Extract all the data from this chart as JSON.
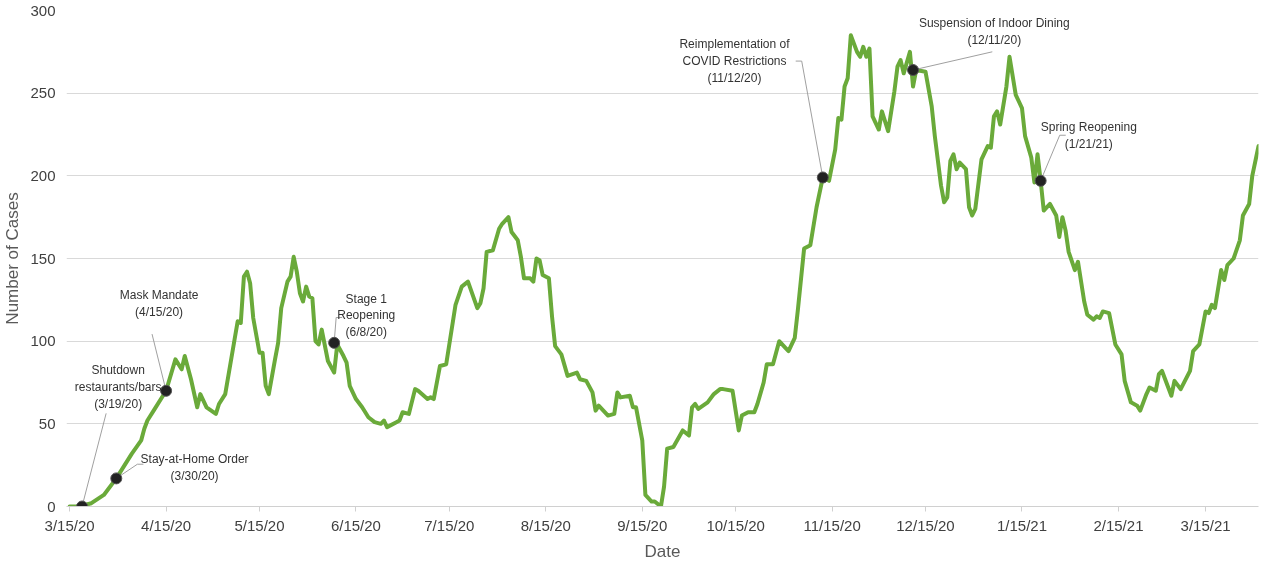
{
  "chart_data": {
    "type": "line",
    "xlabel": "Date",
    "ylabel": "Number of Cases",
    "x": [
      "2020-03-15",
      "2020-03-18",
      "2020-03-22",
      "2020-03-26",
      "2020-03-30",
      "2020-04-04",
      "2020-04-07",
      "2020-04-08",
      "2020-04-09",
      "2020-04-11",
      "2020-04-15",
      "2020-04-18",
      "2020-04-20",
      "2020-04-21",
      "2020-04-23",
      "2020-04-25",
      "2020-04-26",
      "2020-04-28",
      "2020-05-01",
      "2020-05-02",
      "2020-05-04",
      "2020-05-07",
      "2020-05-08",
      "2020-05-09",
      "2020-05-10",
      "2020-05-11",
      "2020-05-12",
      "2020-05-13",
      "2020-05-15",
      "2020-05-16",
      "2020-05-17",
      "2020-05-18",
      "2020-05-20",
      "2020-05-21",
      "2020-05-22",
      "2020-05-24",
      "2020-05-25",
      "2020-05-26",
      "2020-05-27",
      "2020-05-28",
      "2020-05-29",
      "2020-05-30",
      "2020-05-31",
      "2020-06-01",
      "2020-06-02",
      "2020-06-03",
      "2020-06-04",
      "2020-06-06",
      "2020-06-08",
      "2020-06-09",
      "2020-06-11",
      "2020-06-12",
      "2020-06-13",
      "2020-06-15",
      "2020-06-17",
      "2020-06-19",
      "2020-06-21",
      "2020-06-23",
      "2020-06-24",
      "2020-06-25",
      "2020-06-28",
      "2020-06-29",
      "2020-06-30",
      "2020-07-02",
      "2020-07-04",
      "2020-07-05",
      "2020-07-08",
      "2020-07-09",
      "2020-07-10",
      "2020-07-12",
      "2020-07-14",
      "2020-07-17",
      "2020-07-19",
      "2020-07-21",
      "2020-07-24",
      "2020-07-25",
      "2020-07-26",
      "2020-07-27",
      "2020-07-29",
      "2020-07-31",
      "2020-08-01",
      "2020-08-03",
      "2020-08-04",
      "2020-08-06",
      "2020-08-07",
      "2020-08-08",
      "2020-08-10",
      "2020-08-11",
      "2020-08-12",
      "2020-08-13",
      "2020-08-14",
      "2020-08-16",
      "2020-08-17",
      "2020-08-18",
      "2020-08-20",
      "2020-08-22",
      "2020-08-25",
      "2020-08-26",
      "2020-08-28",
      "2020-08-30",
      "2020-08-31",
      "2020-09-01",
      "2020-09-04",
      "2020-09-06",
      "2020-09-07",
      "2020-09-08",
      "2020-09-11",
      "2020-09-12",
      "2020-09-13",
      "2020-09-15",
      "2020-09-16",
      "2020-09-18",
      "2020-09-19",
      "2020-09-21",
      "2020-09-22",
      "2020-09-23",
      "2020-09-25",
      "2020-09-28",
      "2020-09-30",
      "2020-10-01",
      "2020-10-02",
      "2020-10-03",
      "2020-10-06",
      "2020-10-08",
      "2020-10-10",
      "2020-10-11",
      "2020-10-14",
      "2020-10-15",
      "2020-10-16",
      "2020-10-17",
      "2020-10-19",
      "2020-10-21",
      "2020-10-22",
      "2020-10-24",
      "2020-10-25",
      "2020-10-27",
      "2020-10-28",
      "2020-10-29",
      "2020-10-31",
      "2020-11-01",
      "2020-11-03",
      "2020-11-04",
      "2020-11-06",
      "2020-11-08",
      "2020-11-10",
      "2020-11-12",
      "2020-11-14",
      "2020-11-16",
      "2020-11-17",
      "2020-11-18",
      "2020-11-19",
      "2020-11-20",
      "2020-11-21",
      "2020-11-23",
      "2020-11-24",
      "2020-11-25",
      "2020-11-26",
      "2020-11-27",
      "2020-11-28",
      "2020-11-30",
      "2020-12-01",
      "2020-12-03",
      "2020-12-05",
      "2020-12-06",
      "2020-12-07",
      "2020-12-08",
      "2020-12-10",
      "2020-12-11",
      "2020-12-12",
      "2020-12-15",
      "2020-12-17",
      "2020-12-18",
      "2020-12-20",
      "2020-12-21",
      "2020-12-22",
      "2020-12-23",
      "2020-12-24",
      "2020-12-25",
      "2020-12-26",
      "2020-12-28",
      "2020-12-29",
      "2020-12-30",
      "2020-12-31",
      "2021-01-02",
      "2021-01-04",
      "2021-01-05",
      "2021-01-06",
      "2021-01-07",
      "2021-01-08",
      "2021-01-10",
      "2021-01-11",
      "2021-01-13",
      "2021-01-15",
      "2021-01-16",
      "2021-01-18",
      "2021-01-19",
      "2021-01-20",
      "2021-01-21",
      "2021-01-22",
      "2021-01-24",
      "2021-01-26",
      "2021-01-27",
      "2021-01-28",
      "2021-01-29",
      "2021-01-30",
      "2021-02-01",
      "2021-02-02",
      "2021-02-04",
      "2021-02-05",
      "2021-02-07",
      "2021-02-08",
      "2021-02-09",
      "2021-02-10",
      "2021-02-12",
      "2021-02-14",
      "2021-02-16",
      "2021-02-17",
      "2021-02-19",
      "2021-02-21",
      "2021-02-22",
      "2021-02-24",
      "2021-02-25",
      "2021-02-27",
      "2021-02-28",
      "2021-03-01",
      "2021-03-03",
      "2021-03-04",
      "2021-03-05",
      "2021-03-07",
      "2021-03-10",
      "2021-03-11",
      "2021-03-13",
      "2021-03-15",
      "2021-03-16",
      "2021-03-17",
      "2021-03-18",
      "2021-03-20",
      "2021-03-21",
      "2021-03-22",
      "2021-03-24",
      "2021-03-26",
      "2021-03-27",
      "2021-03-29",
      "2021-03-30",
      "2021-04-01"
    ],
    "series": [
      {
        "color": "#6aaa3a",
        "values": [
          0,
          0,
          2,
          7,
          17,
          32,
          40,
          47,
          52,
          58,
          70,
          89,
          83,
          91,
          77,
          60,
          68,
          60,
          56,
          62,
          68,
          101,
          112,
          111,
          139,
          142,
          135,
          114,
          93,
          93,
          73,
          68,
          89,
          99,
          120,
          136,
          139,
          151,
          142,
          129,
          124,
          133,
          127,
          126,
          100,
          98,
          107,
          88,
          81,
          98,
          91,
          87,
          73,
          65,
          60,
          54,
          51,
          50,
          52,
          48,
          51,
          52,
          57,
          56,
          71,
          70,
          65,
          66,
          65,
          85,
          86,
          122,
          133,
          136,
          120,
          123,
          132,
          154,
          155,
          168,
          171,
          175,
          166,
          161,
          151,
          138,
          138,
          136,
          150,
          149,
          140,
          138,
          115,
          97,
          92,
          79,
          81,
          77,
          76,
          69,
          58,
          61,
          55,
          56,
          69,
          66,
          67,
          60,
          60,
          40,
          7,
          3,
          3,
          0,
          12,
          35,
          36,
          46,
          43,
          60,
          62,
          59,
          63,
          68,
          71,
          71,
          70,
          58,
          46,
          55,
          57,
          57,
          62,
          75,
          86,
          86,
          93,
          100,
          96,
          94,
          102,
          119,
          156,
          158,
          181,
          199,
          197,
          216,
          235,
          234,
          254,
          259,
          285,
          275,
          272,
          278,
          272,
          277,
          236,
          228,
          239,
          227,
          251,
          266,
          270,
          262,
          275,
          254,
          264,
          263,
          242,
          224,
          194,
          184,
          187,
          209,
          213,
          204,
          208,
          204,
          181,
          176,
          180,
          210,
          218,
          217,
          236,
          239,
          231,
          254,
          272,
          249,
          241,
          224,
          211,
          196,
          213,
          197,
          179,
          183,
          176,
          163,
          175,
          167,
          154,
          143,
          148,
          124,
          116,
          113,
          115,
          114,
          118,
          117,
          98,
          92,
          76,
          63,
          61,
          58,
          68,
          72,
          70,
          80,
          82,
          72,
          67,
          76,
          71,
          82,
          94,
          98,
          118,
          117,
          122,
          120,
          143,
          137,
          146,
          150,
          161,
          176,
          183,
          200,
          218
        ]
      }
    ],
    "xlim": [
      "2020-03-14",
      "2021-04-01"
    ],
    "xticks": [
      {
        "value": "2020-03-15",
        "label": "3/15/20"
      },
      {
        "value": "2020-04-15",
        "label": "4/15/20"
      },
      {
        "value": "2020-05-15",
        "label": "5/15/20"
      },
      {
        "value": "2020-06-15",
        "label": "6/15/20"
      },
      {
        "value": "2020-07-15",
        "label": "7/15/20"
      },
      {
        "value": "2020-08-15",
        "label": "8/15/20"
      },
      {
        "value": "2020-09-15",
        "label": "9/15/20"
      },
      {
        "value": "2020-10-15",
        "label": "10/15/20"
      },
      {
        "value": "2020-11-15",
        "label": "11/15/20"
      },
      {
        "value": "2020-12-15",
        "label": "12/15/20"
      },
      {
        "value": "2021-01-15",
        "label": "1/15/21"
      },
      {
        "value": "2021-02-15",
        "label": "2/15/21"
      },
      {
        "value": "2021-03-15",
        "label": "3/15/21"
      }
    ],
    "ylim": [
      0,
      300
    ],
    "yticks": [
      0,
      50,
      100,
      150,
      200,
      250,
      300
    ],
    "grid": "y",
    "marker": "none",
    "line_style": "solid",
    "annotations": [
      {
        "text": "Shutdown\nrestaurants/bars\n(3/19/20)",
        "x": "2020-03-19",
        "y": 0
      },
      {
        "text": "Stay-at-Home Order\n(3/30/20)",
        "x": "2020-03-30",
        "y": 17
      },
      {
        "text": "Mask Mandate\n(4/15/20)",
        "x": "2020-04-15",
        "y": 70
      },
      {
        "text": "Stage 1\nReopening\n(6/8/20)",
        "x": "2020-06-08",
        "y": 99
      },
      {
        "text": "Reimplementation of\nCOVID Restrictions\n(11/12/20)",
        "x": "2020-11-12",
        "y": 199
      },
      {
        "text": "Suspension of Indoor Dining\n(12/11/20)",
        "x": "2020-12-11",
        "y": 264
      },
      {
        "text": "Spring Reopening\n(1/21/21)",
        "x": "2021-01-21",
        "y": 197
      }
    ]
  }
}
